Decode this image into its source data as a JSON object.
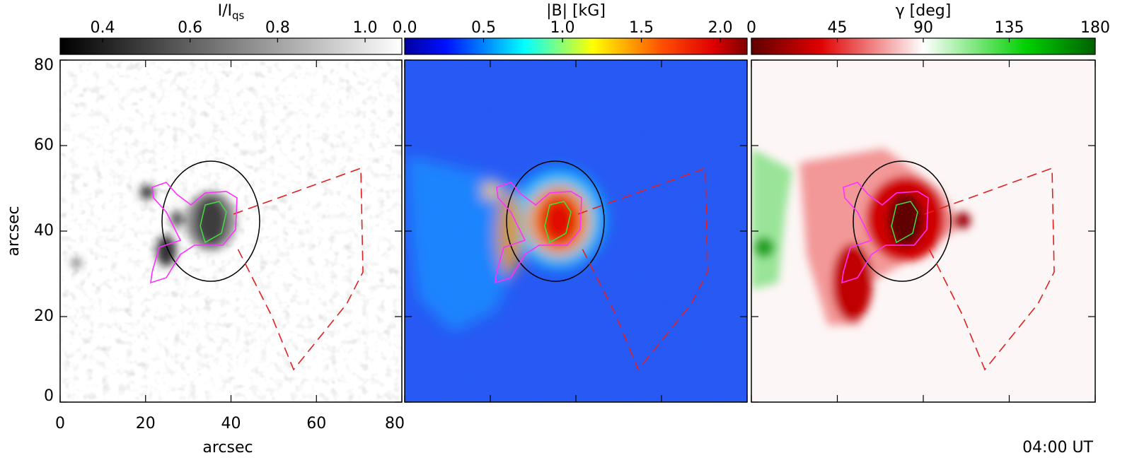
{
  "colorbars": [
    {
      "label": {
        "text": "I/I",
        "sub": "qs"
      },
      "range": [
        0.303,
        1.084
      ],
      "ticks": [
        0.4,
        0.6,
        0.8,
        {
          "value": 1,
          "label": "1.0"
        }
      ]
    },
    {
      "label": {
        "text": "|B| [kG]"
      },
      "range": [
        0,
        2.17
      ],
      "ticks": [
        {
          "value": 0,
          "label": "0.0"
        },
        0.5,
        {
          "value": 1,
          "label": "1.0"
        },
        1.5,
        {
          "value": 2,
          "label": "2.0"
        }
      ]
    },
    {
      "label": {
        "text": "γ [deg]"
      },
      "range": [
        0,
        180
      ],
      "ticks": [
        0,
        45,
        90,
        135,
        180
      ]
    }
  ],
  "axes": {
    "xlim": [
      0,
      80
    ],
    "ylim": [
      0,
      80
    ],
    "xticks": [
      0,
      20,
      40,
      60,
      80
    ],
    "yticks": [
      0,
      20,
      40,
      60,
      80
    ],
    "xlabel": "arcsec",
    "ylabel": "arcsec"
  },
  "timestamp": "04:00 UT"
}
